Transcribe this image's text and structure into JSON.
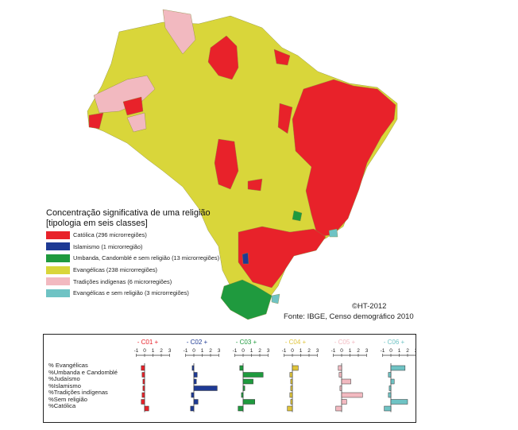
{
  "colors": {
    "catolica": "#e8222a",
    "islamismo": "#1e3a94",
    "umbanda": "#1f9a3e",
    "evangelicas": "#d9d63a",
    "tradicoes": "#f2b9c0",
    "evang_sem": "#6fc3c4"
  },
  "legend": {
    "title_line1": "Concentração significativa de uma religião",
    "title_line2": "[tipologia em seis classes]",
    "items": [
      {
        "label": "Católica (296 microrregiões)",
        "color": "#e8222a"
      },
      {
        "label": "Islamismo (1 microrregião)",
        "color": "#1e3a94"
      },
      {
        "label": "Umbanda, Candomblé e sem religião (13 microrregiões)",
        "color": "#1f9a3e"
      },
      {
        "label": "Evangélicas (238 microrregiões)",
        "color": "#d9d63a"
      },
      {
        "label": "Tradições indígenas (6 microrregiões)",
        "color": "#f2b9c0"
      },
      {
        "label": "Evangélicas e sem religião (3 microrregiões)",
        "color": "#6fc3c4"
      }
    ]
  },
  "credit": "©HT-2012",
  "source": "Fonte: IBGE, Censo demográfico 2010",
  "profiles": {
    "row_labels": [
      "% Evangélicas",
      "%Umbanda e Candomblé",
      "%Judaísmo",
      "%Islamismo",
      "%Tradições indígenas",
      "%Sem religião",
      "%Católica"
    ],
    "ticks": [
      "-1",
      "0",
      "1",
      "2",
      "3"
    ],
    "classes": [
      {
        "title": "C01",
        "color": "#e8222a",
        "values": [
          -0.4,
          -0.3,
          -0.2,
          -0.2,
          -0.3,
          -0.4,
          0.5
        ]
      },
      {
        "title": "C02",
        "color": "#1e3a94",
        "values": [
          -0.2,
          0.4,
          0.3,
          2.8,
          -0.3,
          0.5,
          -0.4
        ]
      },
      {
        "title": "C03",
        "color": "#1f9a3e",
        "values": [
          -0.4,
          2.4,
          1.2,
          0.2,
          -0.2,
          1.4,
          -0.6
        ]
      },
      {
        "title": "C04",
        "color": "#e0c43a",
        "values": [
          0.7,
          -0.3,
          -0.2,
          -0.2,
          -0.3,
          -0.2,
          -0.6
        ]
      },
      {
        "title": "C05",
        "color": "#f2b9c0",
        "values": [
          -0.4,
          -0.3,
          1.1,
          -0.2,
          2.5,
          0.6,
          -0.7
        ]
      },
      {
        "title": "C06",
        "color": "#6fc3c4",
        "values": [
          1.7,
          -0.3,
          0.4,
          -0.2,
          -0.3,
          2.0,
          -0.8
        ]
      }
    ]
  }
}
